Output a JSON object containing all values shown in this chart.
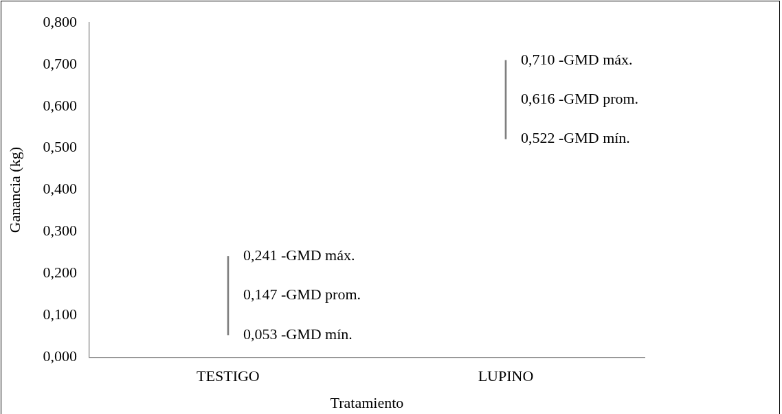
{
  "chart_data": {
    "type": "bar",
    "xlabel": "Tratamiento",
    "ylabel": "Ganancia (kg)",
    "categories": [
      "TESTIGO",
      "LUPINO"
    ],
    "base": [
      0.053,
      0.522
    ],
    "values": [
      0.188,
      0.188
    ],
    "color": "#7f7f7f",
    "annotations": [
      {
        "text": "0,241 -GMD máx.",
        "x": "TESTIGO",
        "y": 0.241
      },
      {
        "text": "0,147 -GMD prom.",
        "x": "TESTIGO",
        "y": 0.147
      },
      {
        "text": "0,053 -GMD mín.",
        "x": "TESTIGO",
        "y": 0.053
      },
      {
        "text": "0,710 -GMD máx.",
        "x": "LUPINO",
        "y": 0.71
      },
      {
        "text": "0,616 -GMD prom.",
        "x": "LUPINO",
        "y": 0.616
      },
      {
        "text": "0,522 -GMD mín.",
        "x": "LUPINO",
        "y": 0.522
      }
    ],
    "ylim": [
      0,
      0.8
    ],
    "yticks": [
      {
        "value": 0,
        "label": "0,000"
      },
      {
        "value": 0.1,
        "label": "0,100"
      },
      {
        "value": 0.2,
        "label": "0,200"
      },
      {
        "value": 0.3,
        "label": "0,300"
      },
      {
        "value": 0.4,
        "label": "0,400"
      },
      {
        "value": 0.5,
        "label": "0,500"
      },
      {
        "value": 0.6,
        "label": "0,600"
      },
      {
        "value": 0.7,
        "label": "0,700"
      },
      {
        "value": 0.8,
        "label": "0,800"
      }
    ],
    "grid": false,
    "legend": false
  }
}
